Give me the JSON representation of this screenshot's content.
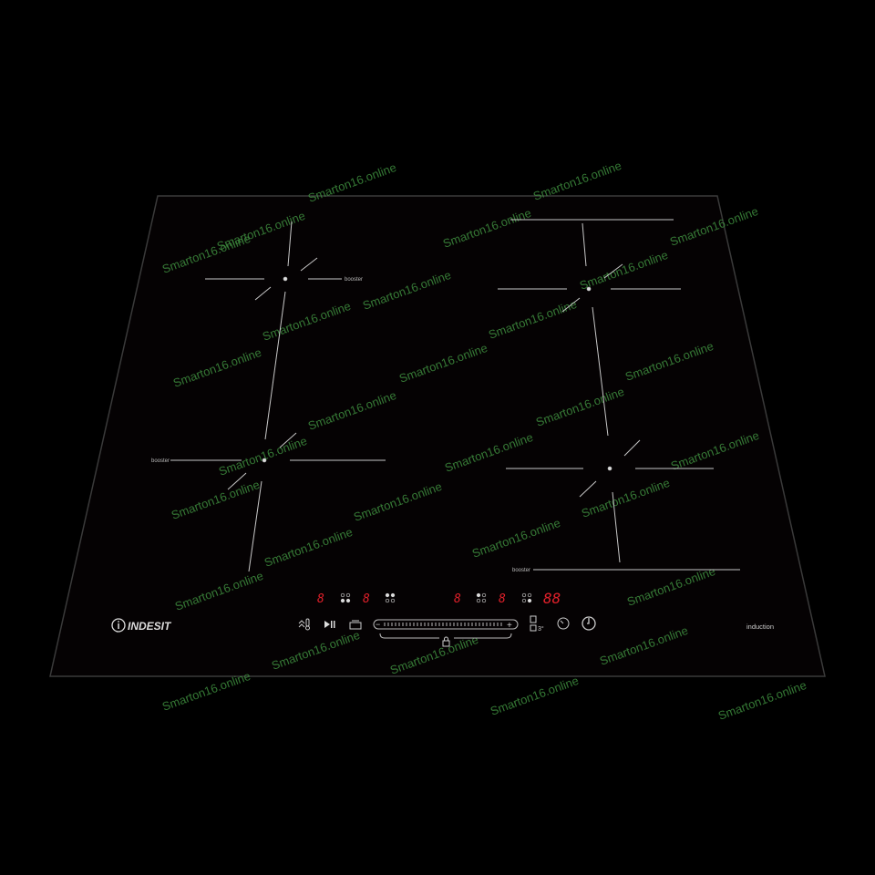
{
  "brand": "INDESIT",
  "product_label": "induction",
  "booster_labels": [
    "booster",
    "booster",
    "booster"
  ],
  "watermark": "Smarton16.online",
  "displays": [
    "8",
    "8",
    "8",
    "8",
    "88"
  ],
  "colors": {
    "glass": "#050203",
    "display_red": "#e0202a",
    "markings": "#c8c8c8",
    "watermark": "#3f8f3f"
  },
  "controls": {
    "icons": [
      "keep-warm-icon",
      "play-pause-icon",
      "pot-detect-icon",
      "slider-minus",
      "slider-plus",
      "bridge-icon",
      "timer-icon",
      "clock-icon",
      "lock-icon"
    ],
    "slider_minus": "−",
    "slider_plus": "+",
    "bridge_sub": "3°"
  }
}
